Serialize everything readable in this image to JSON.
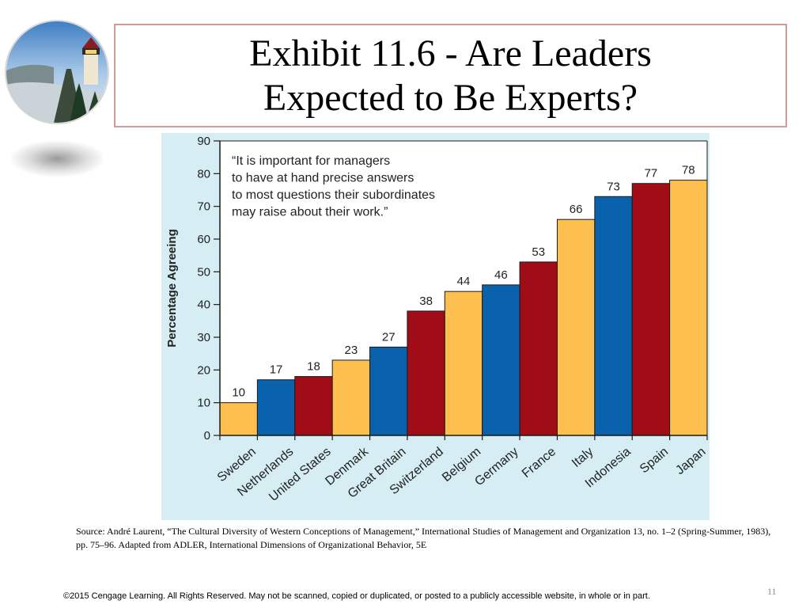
{
  "slide": {
    "title_line1": "Exhibit 11.6 - Are Leaders",
    "title_line2": "Expected to Be Experts?",
    "source": "Source: André Laurent, “The Cultural Diversity of Western Conceptions of Management,” International Studies of Management and Organization 13, no. 1–2 (Spring-Summer, 1983), pp. 75–96. Adapted from ADLER, International Dimensions of Organizational Behavior, 5E",
    "page_number": "11",
    "copyright": "©2015 Cengage Learning. All Rights Reserved. May not be scanned, copied or duplicated, or posted to a publicly accessible website, in whole or in part."
  },
  "chart_data": {
    "type": "bar",
    "ylabel": "Percentage Agreeing",
    "ylim": [
      0,
      90
    ],
    "yticks": [
      "0",
      "10",
      "20",
      "30",
      "40",
      "50",
      "60",
      "70",
      "80",
      "90"
    ],
    "quote": [
      "“It is important for managers",
      "to have at hand precise answers",
      "to most questions their subordinates",
      "may raise about their work.”"
    ],
    "categories": [
      "Sweden",
      "Netherlands",
      "United States",
      "Denmark",
      "Great Britain",
      "Switzerland",
      "Belgium",
      "Germany",
      "France",
      "Italy",
      "Indonesia",
      "Spain",
      "Japan"
    ],
    "values": [
      10,
      17,
      18,
      23,
      27,
      38,
      44,
      46,
      53,
      66,
      73,
      77,
      78
    ],
    "value_labels": [
      "10",
      "17",
      "18",
      "23",
      "27",
      "38",
      "44",
      "46",
      "53",
      "66",
      "73",
      "77",
      "78"
    ],
    "bar_colors": [
      "#FDBF4E",
      "#0A61AC",
      "#A00D17",
      "#FDBF4E",
      "#0A61AC",
      "#A00D17",
      "#FDBF4E",
      "#0A61AC",
      "#A00D17",
      "#FDBF4E",
      "#0A61AC",
      "#A00D17",
      "#FDBF4E"
    ],
    "background_color": "#D6EEF3",
    "grid": false,
    "legend": "none"
  }
}
